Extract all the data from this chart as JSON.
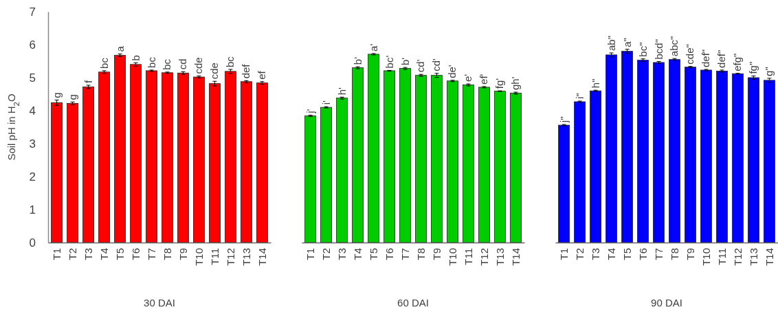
{
  "chart_data": [
    {
      "type": "bar",
      "ylabel": "Soil pH in H$_{2}$O",
      "xlabel": "30 DAI",
      "categories": [
        "T1",
        "T2",
        "T3",
        "T4",
        "T5",
        "T6",
        "T7",
        "T8",
        "T9",
        "T10",
        "T11",
        "T12",
        "T13",
        "T14"
      ],
      "ylim": [
        0,
        7
      ],
      "yticks": [
        0,
        1,
        2,
        3,
        4,
        5,
        6,
        7
      ],
      "grid": false,
      "series": [
        {
          "color": "#ff0000",
          "values": [
            4.24,
            4.22,
            4.72,
            5.17,
            5.68,
            5.4,
            5.21,
            5.15,
            5.14,
            5.02,
            4.82,
            5.19,
            4.88,
            4.84
          ],
          "errors": [
            0.08,
            0.04,
            0.05,
            0.04,
            0.04,
            0.05,
            0.02,
            0.02,
            0.04,
            0.03,
            0.07,
            0.06,
            0.03,
            0.04
          ]
        }
      ],
      "annotations": [
        {
          "text": "g",
          "x": "T1",
          "y": 4.32
        },
        {
          "text": "g",
          "x": "T2",
          "y": 4.26
        },
        {
          "text": "f",
          "x": "T3",
          "y": 4.77
        },
        {
          "text": "bc",
          "x": "T4",
          "y": 5.21
        },
        {
          "text": "a",
          "x": "T5",
          "y": 5.72
        },
        {
          "text": "b",
          "x": "T6",
          "y": 5.45
        },
        {
          "text": "bc",
          "x": "T7",
          "y": 5.23
        },
        {
          "text": "bc",
          "x": "T8",
          "y": 5.17
        },
        {
          "text": "cd",
          "x": "T9",
          "y": 5.18
        },
        {
          "text": "cde",
          "x": "T10",
          "y": 5.05
        },
        {
          "text": "cde",
          "x": "T11",
          "y": 4.89
        },
        {
          "text": "bc",
          "x": "T12",
          "y": 5.25
        },
        {
          "text": "def",
          "x": "T13",
          "y": 4.91
        },
        {
          "text": "ef",
          "x": "T14",
          "y": 4.88
        }
      ]
    },
    {
      "type": "bar",
      "xlabel": "60 DAI",
      "categories": [
        "T1",
        "T2",
        "T3",
        "T4",
        "T5",
        "T6",
        "T7",
        "T8",
        "T9",
        "T10",
        "T11",
        "T12",
        "T13",
        "T14"
      ],
      "ylim": [
        0,
        7
      ],
      "yticks": [
        0,
        1,
        2,
        3,
        4,
        5,
        6,
        7
      ],
      "tick_labels": "x",
      "grid": false,
      "series": [
        {
          "color": "#00cc00",
          "values": [
            3.84,
            4.1,
            4.38,
            5.3,
            5.71,
            5.21,
            5.28,
            5.07,
            5.07,
            4.9,
            4.78,
            4.71,
            4.59,
            4.53
          ],
          "errors": [
            0.02,
            0.02,
            0.03,
            0.03,
            0.02,
            0.01,
            0.03,
            0.03,
            0.06,
            0.02,
            0.03,
            0.02,
            0.01,
            0.03
          ]
        }
      ],
      "annotations": [
        {
          "text": "j'",
          "x": "T1",
          "y": 3.86
        },
        {
          "text": "i'",
          "x": "T2",
          "y": 4.12
        },
        {
          "text": "h'",
          "x": "T3",
          "y": 4.41
        },
        {
          "text": "b'",
          "x": "T4",
          "y": 5.33
        },
        {
          "text": "a'",
          "x": "T5",
          "y": 5.73
        },
        {
          "text": "bc'",
          "x": "T6",
          "y": 5.22
        },
        {
          "text": "b'",
          "x": "T7",
          "y": 5.31
        },
        {
          "text": "cd'",
          "x": "T8",
          "y": 5.1
        },
        {
          "text": "cd'",
          "x": "T9",
          "y": 5.13
        },
        {
          "text": "de'",
          "x": "T10",
          "y": 4.92
        },
        {
          "text": "e'",
          "x": "T11",
          "y": 4.81
        },
        {
          "text": "ef'",
          "x": "T12",
          "y": 4.73
        },
        {
          "text": "fg'",
          "x": "T13",
          "y": 4.6
        },
        {
          "text": "gh'",
          "x": "T14",
          "y": 4.56
        }
      ]
    },
    {
      "type": "bar",
      "xlabel": "90 DAI",
      "categories": [
        "T1",
        "T2",
        "T3",
        "T4",
        "T5",
        "T6",
        "T7",
        "T8",
        "T9",
        "T10",
        "T11",
        "T12",
        "T13",
        "T14"
      ],
      "ylim": [
        0,
        7
      ],
      "yticks": [
        0,
        1,
        2,
        3,
        4,
        5,
        6,
        7
      ],
      "tick_labels": "x",
      "grid": false,
      "series": [
        {
          "color": "#0000ff",
          "values": [
            3.56,
            4.27,
            4.6,
            5.69,
            5.8,
            5.53,
            5.46,
            5.55,
            5.32,
            5.23,
            5.2,
            5.12,
            5.0,
            4.92
          ],
          "errors": [
            0.02,
            0.02,
            0.02,
            0.06,
            0.06,
            0.04,
            0.03,
            0.03,
            0.02,
            0.02,
            0.03,
            0.01,
            0.05,
            0.06
          ]
        }
      ],
      "annotations": [
        {
          "text": "j\"",
          "x": "T1",
          "y": 3.58
        },
        {
          "text": "i\"",
          "x": "T2",
          "y": 4.29
        },
        {
          "text": "h\"",
          "x": "T3",
          "y": 4.62
        },
        {
          "text": "ab\"",
          "x": "T4",
          "y": 5.75
        },
        {
          "text": "a\"",
          "x": "T5",
          "y": 5.86
        },
        {
          "text": "bc\"",
          "x": "T6",
          "y": 5.57
        },
        {
          "text": "bcd\"",
          "x": "T7",
          "y": 5.49
        },
        {
          "text": "abc\"",
          "x": "T8",
          "y": 5.58
        },
        {
          "text": "cde\"",
          "x": "T9",
          "y": 5.34
        },
        {
          "text": "def\"",
          "x": "T10",
          "y": 5.25
        },
        {
          "text": "def\"",
          "x": "T11",
          "y": 5.23
        },
        {
          "text": "efg\"",
          "x": "T12",
          "y": 5.13
        },
        {
          "text": "fg\"",
          "x": "T13",
          "y": 5.05
        },
        {
          "text": "g\"",
          "x": "T14",
          "y": 4.98
        }
      ]
    }
  ]
}
